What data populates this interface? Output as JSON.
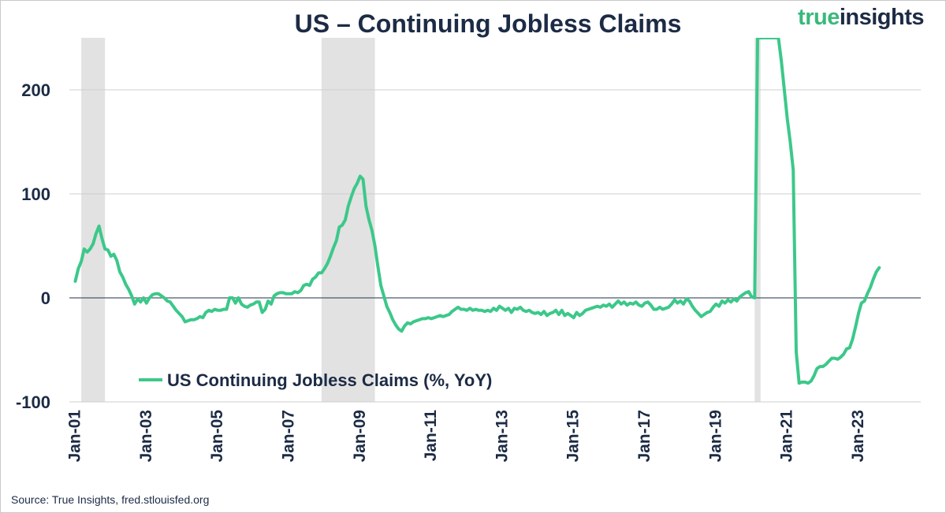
{
  "title": "US – Continuing Jobless Claims",
  "brand": {
    "part1": "true",
    "part2": "insights"
  },
  "source": "Source: True Insights, fred.stlouisfed.org",
  "colors": {
    "line": "#3cc88a",
    "text": "#1c2b45",
    "grid": "#cfcfcf",
    "recession": "#e2e2e2",
    "zero": "#4a5a6a"
  },
  "chart_data": {
    "type": "line",
    "title": "US – Continuing Jobless Claims",
    "xlabel": "",
    "ylabel": "",
    "ylim": [
      -100,
      250
    ],
    "yticks": [
      -100,
      0,
      100,
      200
    ],
    "ytick_labels": [
      "-100",
      "0",
      "100",
      "200"
    ],
    "xticks": [
      "2001-01",
      "2003-01",
      "2005-01",
      "2007-01",
      "2009-01",
      "2011-01",
      "2013-01",
      "2015-01",
      "2017-01",
      "2019-01",
      "2021-01",
      "2023-01"
    ],
    "xtick_labels": [
      "Jan-01",
      "Jan-03",
      "Jan-05",
      "Jan-07",
      "Jan-09",
      "Jan-11",
      "Jan-13",
      "Jan-15",
      "Jan-17",
      "Jan-19",
      "Jan-21",
      "Jan-23"
    ],
    "xlim": [
      "2000-11",
      "2024-10"
    ],
    "grid": true,
    "legend": "bottom-left",
    "recessions": [
      {
        "start": "2001-03",
        "end": "2001-11"
      },
      {
        "start": "2007-12",
        "end": "2009-06"
      },
      {
        "start": "2020-02",
        "end": "2020-04"
      }
    ],
    "series": [
      {
        "name": "US Continuing Jobless Claims (%, YoY)",
        "points": [
          [
            "2001-01",
            16
          ],
          [
            "2001-02",
            28
          ],
          [
            "2001-03",
            35
          ],
          [
            "2001-04",
            47
          ],
          [
            "2001-05",
            44
          ],
          [
            "2001-06",
            47
          ],
          [
            "2001-07",
            52
          ],
          [
            "2001-08",
            62
          ],
          [
            "2001-09",
            69
          ],
          [
            "2001-10",
            57
          ],
          [
            "2001-11",
            47
          ],
          [
            "2001-12",
            46
          ],
          [
            "2002-01",
            40
          ],
          [
            "2002-02",
            42
          ],
          [
            "2002-03",
            36
          ],
          [
            "2002-04",
            25
          ],
          [
            "2002-05",
            20
          ],
          [
            "2002-06",
            13
          ],
          [
            "2002-07",
            8
          ],
          [
            "2002-08",
            2
          ],
          [
            "2002-09",
            -6
          ],
          [
            "2002-10",
            -1
          ],
          [
            "2002-11",
            -4
          ],
          [
            "2002-12",
            0
          ],
          [
            "2003-01",
            -5
          ],
          [
            "2003-02",
            0
          ],
          [
            "2003-03",
            3
          ],
          [
            "2003-04",
            4
          ],
          [
            "2003-05",
            4
          ],
          [
            "2003-06",
            2
          ],
          [
            "2003-07",
            0
          ],
          [
            "2003-08",
            -3
          ],
          [
            "2003-09",
            -4
          ],
          [
            "2003-10",
            -8
          ],
          [
            "2003-11",
            -12
          ],
          [
            "2003-12",
            -15
          ],
          [
            "2004-01",
            -18
          ],
          [
            "2004-02",
            -23
          ],
          [
            "2004-03",
            -22
          ],
          [
            "2004-04",
            -21
          ],
          [
            "2004-05",
            -21
          ],
          [
            "2004-06",
            -20
          ],
          [
            "2004-07",
            -18
          ],
          [
            "2004-08",
            -19
          ],
          [
            "2004-09",
            -14
          ],
          [
            "2004-10",
            -12
          ],
          [
            "2004-11",
            -13
          ],
          [
            "2004-12",
            -11
          ],
          [
            "2005-01",
            -12
          ],
          [
            "2005-02",
            -12
          ],
          [
            "2005-03",
            -11
          ],
          [
            "2005-04",
            -11
          ],
          [
            "2005-05",
            0
          ],
          [
            "2005-06",
            0
          ],
          [
            "2005-07",
            -5
          ],
          [
            "2005-08",
            0
          ],
          [
            "2005-09",
            -6
          ],
          [
            "2005-10",
            -8
          ],
          [
            "2005-11",
            -9
          ],
          [
            "2005-12",
            -7
          ],
          [
            "2006-01",
            -6
          ],
          [
            "2006-02",
            -4
          ],
          [
            "2006-03",
            -4
          ],
          [
            "2006-04",
            -14
          ],
          [
            "2006-05",
            -11
          ],
          [
            "2006-06",
            -3
          ],
          [
            "2006-07",
            -6
          ],
          [
            "2006-08",
            2
          ],
          [
            "2006-09",
            4
          ],
          [
            "2006-10",
            5
          ],
          [
            "2006-11",
            5
          ],
          [
            "2006-12",
            4
          ],
          [
            "2007-01",
            4
          ],
          [
            "2007-02",
            4
          ],
          [
            "2007-03",
            6
          ],
          [
            "2007-04",
            5
          ],
          [
            "2007-05",
            7
          ],
          [
            "2007-06",
            12
          ],
          [
            "2007-07",
            13
          ],
          [
            "2007-08",
            12
          ],
          [
            "2007-09",
            18
          ],
          [
            "2007-10",
            20
          ],
          [
            "2007-11",
            24
          ],
          [
            "2007-12",
            24
          ],
          [
            "2008-01",
            28
          ],
          [
            "2008-02",
            33
          ],
          [
            "2008-03",
            40
          ],
          [
            "2008-04",
            48
          ],
          [
            "2008-05",
            55
          ],
          [
            "2008-06",
            68
          ],
          [
            "2008-07",
            70
          ],
          [
            "2008-08",
            75
          ],
          [
            "2008-09",
            88
          ],
          [
            "2008-10",
            97
          ],
          [
            "2008-11",
            105
          ],
          [
            "2008-12",
            110
          ],
          [
            "2009-01",
            117
          ],
          [
            "2009-02",
            114
          ],
          [
            "2009-03",
            88
          ],
          [
            "2009-04",
            75
          ],
          [
            "2009-05",
            65
          ],
          [
            "2009-06",
            50
          ],
          [
            "2009-07",
            30
          ],
          [
            "2009-08",
            12
          ],
          [
            "2009-09",
            2
          ],
          [
            "2009-10",
            -8
          ],
          [
            "2009-11",
            -14
          ],
          [
            "2009-12",
            -21
          ],
          [
            "2010-01",
            -26
          ],
          [
            "2010-02",
            -30
          ],
          [
            "2010-03",
            -32
          ],
          [
            "2010-04",
            -27
          ],
          [
            "2010-05",
            -24
          ],
          [
            "2010-06",
            -25
          ],
          [
            "2010-07",
            -23
          ],
          [
            "2010-08",
            -22
          ],
          [
            "2010-09",
            -21
          ],
          [
            "2010-10",
            -20
          ],
          [
            "2010-11",
            -20
          ],
          [
            "2010-12",
            -19
          ],
          [
            "2011-01",
            -20
          ],
          [
            "2011-02",
            -19
          ],
          [
            "2011-03",
            -18
          ],
          [
            "2011-04",
            -17
          ],
          [
            "2011-05",
            -18
          ],
          [
            "2011-06",
            -17
          ],
          [
            "2011-07",
            -16
          ],
          [
            "2011-08",
            -13
          ],
          [
            "2011-09",
            -11
          ],
          [
            "2011-10",
            -9
          ],
          [
            "2011-11",
            -11
          ],
          [
            "2011-12",
            -11
          ],
          [
            "2012-01",
            -12
          ],
          [
            "2012-02",
            -10
          ],
          [
            "2012-03",
            -12
          ],
          [
            "2012-04",
            -11
          ],
          [
            "2012-05",
            -12
          ],
          [
            "2012-06",
            -12
          ],
          [
            "2012-07",
            -13
          ],
          [
            "2012-08",
            -12
          ],
          [
            "2012-09",
            -13
          ],
          [
            "2012-10",
            -10
          ],
          [
            "2012-11",
            -12
          ],
          [
            "2012-12",
            -8
          ],
          [
            "2013-01",
            -10
          ],
          [
            "2013-02",
            -12
          ],
          [
            "2013-03",
            -10
          ],
          [
            "2013-04",
            -14
          ],
          [
            "2013-05",
            -10
          ],
          [
            "2013-06",
            -11
          ],
          [
            "2013-07",
            -9
          ],
          [
            "2013-08",
            -12
          ],
          [
            "2013-09",
            -13
          ],
          [
            "2013-10",
            -12
          ],
          [
            "2013-11",
            -14
          ],
          [
            "2013-12",
            -15
          ],
          [
            "2014-01",
            -14
          ],
          [
            "2014-02",
            -16
          ],
          [
            "2014-03",
            -13
          ],
          [
            "2014-04",
            -17
          ],
          [
            "2014-05",
            -15
          ],
          [
            "2014-06",
            -14
          ],
          [
            "2014-07",
            -12
          ],
          [
            "2014-08",
            -16
          ],
          [
            "2014-09",
            -12
          ],
          [
            "2014-10",
            -17
          ],
          [
            "2014-11",
            -15
          ],
          [
            "2014-12",
            -17
          ],
          [
            "2015-01",
            -19
          ],
          [
            "2015-02",
            -14
          ],
          [
            "2015-03",
            -17
          ],
          [
            "2015-04",
            -15
          ],
          [
            "2015-05",
            -12
          ],
          [
            "2015-06",
            -11
          ],
          [
            "2015-07",
            -10
          ],
          [
            "2015-08",
            -9
          ],
          [
            "2015-09",
            -8
          ],
          [
            "2015-10",
            -9
          ],
          [
            "2015-11",
            -7
          ],
          [
            "2015-12",
            -8
          ],
          [
            "2016-01",
            -6
          ],
          [
            "2016-02",
            -9
          ],
          [
            "2016-03",
            -6
          ],
          [
            "2016-04",
            -3
          ],
          [
            "2016-05",
            -6
          ],
          [
            "2016-06",
            -4
          ],
          [
            "2016-07",
            -7
          ],
          [
            "2016-08",
            -5
          ],
          [
            "2016-09",
            -6
          ],
          [
            "2016-10",
            -4
          ],
          [
            "2016-11",
            -7
          ],
          [
            "2016-12",
            -8
          ],
          [
            "2017-01",
            -5
          ],
          [
            "2017-02",
            -4
          ],
          [
            "2017-03",
            -7
          ],
          [
            "2017-04",
            -11
          ],
          [
            "2017-05",
            -11
          ],
          [
            "2017-06",
            -9
          ],
          [
            "2017-07",
            -11
          ],
          [
            "2017-08",
            -10
          ],
          [
            "2017-09",
            -9
          ],
          [
            "2017-10",
            -6
          ],
          [
            "2017-11",
            -2
          ],
          [
            "2017-12",
            -5
          ],
          [
            "2018-01",
            -3
          ],
          [
            "2018-02",
            -6
          ],
          [
            "2018-03",
            -1
          ],
          [
            "2018-04",
            -3
          ],
          [
            "2018-05",
            -8
          ],
          [
            "2018-06",
            -12
          ],
          [
            "2018-07",
            -15
          ],
          [
            "2018-08",
            -18
          ],
          [
            "2018-09",
            -16
          ],
          [
            "2018-10",
            -14
          ],
          [
            "2018-11",
            -13
          ],
          [
            "2018-12",
            -9
          ],
          [
            "2019-01",
            -6
          ],
          [
            "2019-02",
            -8
          ],
          [
            "2019-03",
            -3
          ],
          [
            "2019-04",
            -5
          ],
          [
            "2019-05",
            -2
          ],
          [
            "2019-06",
            -4
          ],
          [
            "2019-07",
            -1
          ],
          [
            "2019-08",
            -3
          ],
          [
            "2019-09",
            1
          ],
          [
            "2019-10",
            3
          ],
          [
            "2019-11",
            5
          ],
          [
            "2019-12",
            6
          ],
          [
            "2020-01",
            1
          ],
          [
            "2020-02",
            0
          ],
          [
            "2020-03",
            250
          ],
          [
            "2020-04",
            250
          ],
          [
            "2020-05",
            250
          ],
          [
            "2020-06",
            250
          ],
          [
            "2020-07",
            250
          ],
          [
            "2020-08",
            250
          ],
          [
            "2020-09",
            250
          ],
          [
            "2020-10",
            250
          ],
          [
            "2020-11",
            228
          ],
          [
            "2020-12",
            200
          ],
          [
            "2021-01",
            172
          ],
          [
            "2021-02",
            150
          ],
          [
            "2021-03",
            123
          ],
          [
            "2021-04",
            -52
          ],
          [
            "2021-05",
            -82
          ],
          [
            "2021-06",
            -81
          ],
          [
            "2021-07",
            -81
          ],
          [
            "2021-08",
            -82
          ],
          [
            "2021-09",
            -80
          ],
          [
            "2021-10",
            -75
          ],
          [
            "2021-11",
            -68
          ],
          [
            "2021-12",
            -66
          ],
          [
            "2022-01",
            -66
          ],
          [
            "2022-02",
            -64
          ],
          [
            "2022-03",
            -61
          ],
          [
            "2022-04",
            -58
          ],
          [
            "2022-05",
            -58
          ],
          [
            "2022-06",
            -59
          ],
          [
            "2022-07",
            -57
          ],
          [
            "2022-08",
            -54
          ],
          [
            "2022-09",
            -49
          ],
          [
            "2022-10",
            -48
          ],
          [
            "2022-11",
            -40
          ],
          [
            "2022-12",
            -28
          ],
          [
            "2023-01",
            -15
          ],
          [
            "2023-02",
            -5
          ],
          [
            "2023-03",
            -3
          ],
          [
            "2023-04",
            4
          ],
          [
            "2023-05",
            10
          ],
          [
            "2023-06",
            18
          ],
          [
            "2023-07",
            25
          ],
          [
            "2023-08",
            29
          ]
        ]
      }
    ]
  }
}
